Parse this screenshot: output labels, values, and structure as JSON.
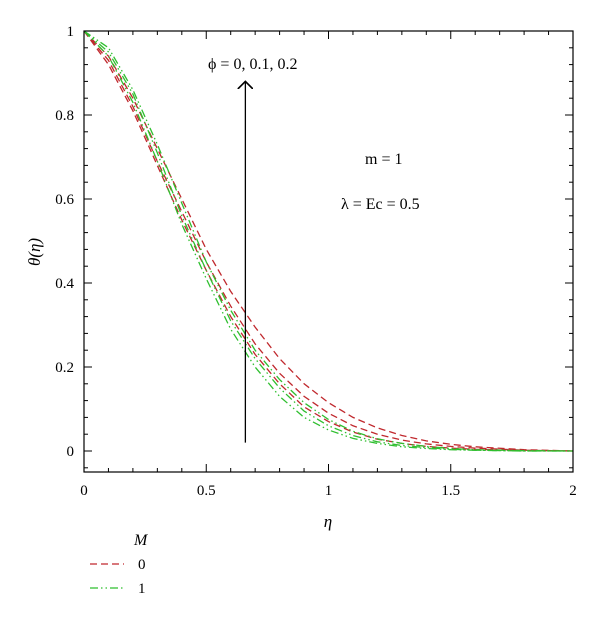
{
  "chart_data": {
    "type": "line",
    "xlabel": "η",
    "ylabel": "θ(η)",
    "xlim": [
      0,
      2
    ],
    "ylim": [
      -0.05,
      1
    ],
    "x_ticks": [
      0,
      0.5,
      1,
      1.5,
      2
    ],
    "x_tick_labels": [
      "0",
      "0.5",
      "1",
      "1.5",
      "2"
    ],
    "y_ticks": [
      0,
      0.2,
      0.4,
      0.6,
      0.8,
      1
    ],
    "y_tick_labels": [
      "0",
      "0.2",
      "0.4",
      "0.6",
      "0.8",
      "1"
    ],
    "grid": false,
    "legend_position": "below-left",
    "legend_title": "M",
    "annotations": {
      "phi_text": "ϕ = 0, 0.1, 0.2",
      "m_text": "m = 1",
      "lambda_text": "λ = Ec = 0.5",
      "arrow": {
        "x": 0.66,
        "y_from": 0.02,
        "y_to": 0.88
      }
    },
    "legend": [
      {
        "label": "0",
        "color": "#c0282d",
        "style": "dashed"
      },
      {
        "label": "1",
        "color": "#2fbf2f",
        "style": "dashdotdot"
      }
    ],
    "series": [
      {
        "M": "0",
        "phi": "0",
        "color": "#c0282d",
        "style": "dashed",
        "x": [
          0,
          0.1,
          0.2,
          0.3,
          0.4,
          0.5,
          0.6,
          0.7,
          0.8,
          0.9,
          1.0,
          1.1,
          1.2,
          1.3,
          1.4,
          1.5,
          1.6,
          1.8,
          2.0
        ],
        "y": [
          1.0,
          0.92,
          0.81,
          0.68,
          0.55,
          0.43,
          0.32,
          0.23,
          0.16,
          0.105,
          0.07,
          0.045,
          0.028,
          0.018,
          0.011,
          0.007,
          0.004,
          0.001,
          0.0
        ]
      },
      {
        "M": "0",
        "phi": "0.1",
        "color": "#c0282d",
        "style": "dashed",
        "x": [
          0,
          0.1,
          0.2,
          0.3,
          0.4,
          0.5,
          0.6,
          0.7,
          0.8,
          0.9,
          1.0,
          1.1,
          1.2,
          1.3,
          1.4,
          1.5,
          1.6,
          1.8,
          2.0
        ],
        "y": [
          1.0,
          0.93,
          0.82,
          0.69,
          0.57,
          0.45,
          0.345,
          0.255,
          0.185,
          0.13,
          0.09,
          0.06,
          0.04,
          0.026,
          0.017,
          0.011,
          0.007,
          0.002,
          0.0
        ]
      },
      {
        "M": "0",
        "phi": "0.2",
        "color": "#c0282d",
        "style": "dashed",
        "x": [
          0,
          0.1,
          0.2,
          0.3,
          0.4,
          0.5,
          0.6,
          0.7,
          0.8,
          0.9,
          1.0,
          1.1,
          1.2,
          1.3,
          1.4,
          1.5,
          1.6,
          1.8,
          2.0
        ],
        "y": [
          1.0,
          0.94,
          0.84,
          0.72,
          0.6,
          0.48,
          0.38,
          0.295,
          0.22,
          0.16,
          0.115,
          0.08,
          0.055,
          0.037,
          0.024,
          0.016,
          0.01,
          0.003,
          0.0
        ]
      },
      {
        "M": "1",
        "phi": "0",
        "color": "#2fbf2f",
        "style": "dashdotdot",
        "x": [
          0,
          0.1,
          0.2,
          0.3,
          0.4,
          0.5,
          0.6,
          0.7,
          0.8,
          0.9,
          1.0,
          1.1,
          1.2,
          1.3,
          1.4,
          1.5,
          1.6,
          1.8,
          2.0
        ],
        "y": [
          1.0,
          0.94,
          0.83,
          0.69,
          0.54,
          0.41,
          0.29,
          0.2,
          0.13,
          0.08,
          0.05,
          0.03,
          0.018,
          0.01,
          0.006,
          0.003,
          0.002,
          0.0,
          0.0
        ]
      },
      {
        "M": "1",
        "phi": "0.1",
        "color": "#2fbf2f",
        "style": "dashdotdot",
        "x": [
          0,
          0.1,
          0.2,
          0.3,
          0.4,
          0.5,
          0.6,
          0.7,
          0.8,
          0.9,
          1.0,
          1.1,
          1.2,
          1.3,
          1.4,
          1.5,
          1.6,
          1.8,
          2.0
        ],
        "y": [
          1.0,
          0.95,
          0.85,
          0.71,
          0.56,
          0.43,
          0.31,
          0.22,
          0.15,
          0.095,
          0.06,
          0.037,
          0.022,
          0.013,
          0.008,
          0.004,
          0.002,
          0.0,
          0.0
        ]
      },
      {
        "M": "1",
        "phi": "0.2",
        "color": "#2fbf2f",
        "style": "dashdotdot",
        "x": [
          0,
          0.1,
          0.2,
          0.3,
          0.4,
          0.5,
          0.6,
          0.7,
          0.8,
          0.9,
          1.0,
          1.1,
          1.2,
          1.3,
          1.4,
          1.5,
          1.6,
          1.8,
          2.0
        ],
        "y": [
          1.0,
          0.96,
          0.86,
          0.73,
          0.59,
          0.45,
          0.335,
          0.24,
          0.17,
          0.115,
          0.075,
          0.047,
          0.029,
          0.018,
          0.011,
          0.006,
          0.003,
          0.001,
          0.0
        ]
      }
    ]
  }
}
